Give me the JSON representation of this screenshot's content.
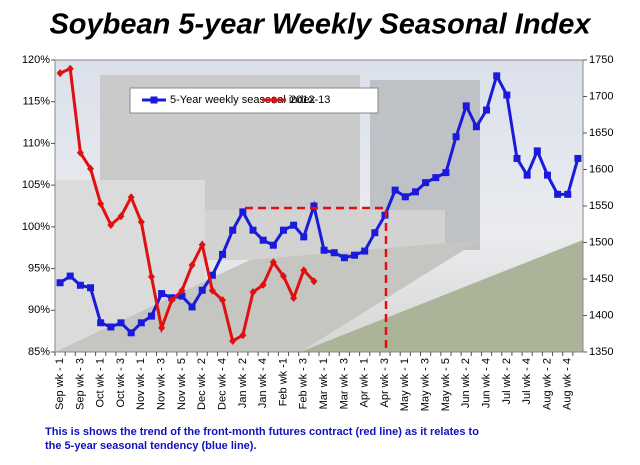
{
  "chart_data": {
    "type": "line",
    "title": "Soybean 5-year Weekly Seasonal Index",
    "footnote": "This is shows the trend of the front-month futures contract (red line) as it relates to the 5-year seasonal tendency (blue line).",
    "categories": [
      "Sep wk - 1",
      null,
      "Sep wk - 3",
      null,
      "Oct wk - 1",
      null,
      "Oct wk - 3",
      null,
      "Nov wk - 1",
      null,
      "Nov wk - 3",
      null,
      "Nov wk - 5",
      null,
      "Dec wk - 2",
      null,
      "Dec wk - 4",
      null,
      "Jan wk - 2",
      null,
      "Jan wk - 4",
      null,
      "Feb wk -1",
      null,
      "Feb wk - 3",
      null,
      "Mar wk - 1",
      null,
      "Mar wk - 3",
      null,
      "Apr wk - 1",
      null,
      "Apr wk - 3",
      null,
      "May wk - 1",
      null,
      "May wk - 3",
      null,
      "May wk - 5",
      null,
      "Jun wk - 2",
      null,
      "Jun wk - 4",
      null,
      "Jul wk - 2",
      null,
      "Jul wk - 4",
      null,
      "Aug wk - 2",
      null,
      "Aug wk - 4",
      null
    ],
    "series": [
      {
        "name": "5-Year weekly seasonal index",
        "color": "#1a1adc",
        "marker": "square",
        "axis": "y",
        "values": [
          93.3,
          94.1,
          93.0,
          92.7,
          88.5,
          88.0,
          88.5,
          87.3,
          88.5,
          89.3,
          92.0,
          91.5,
          91.7,
          90.4,
          92.4,
          94.2,
          96.7,
          99.6,
          101.8,
          99.6,
          98.4,
          97.8,
          99.6,
          100.2,
          98.8,
          102.5,
          97.2,
          96.9,
          96.3,
          96.6,
          97.1,
          99.3,
          101.4,
          104.4,
          103.6,
          104.2,
          105.3,
          105.9,
          106.5,
          110.8,
          114.5,
          112.0,
          114.0,
          118.1,
          115.8,
          108.2,
          106.2,
          109.1,
          106.2,
          103.9,
          103.9,
          108.2
        ]
      },
      {
        "name": "2012-13",
        "color": "#e01010",
        "marker": "diamond",
        "axis": "y2",
        "values": [
          1732,
          1738,
          1623,
          1601,
          1553,
          1524,
          1536,
          1562,
          1528,
          1453,
          1383,
          1421,
          1434,
          1469,
          1497,
          1434,
          1421,
          1365,
          1373,
          1432,
          1442,
          1473,
          1454,
          1424,
          1462,
          1447,
          null,
          null,
          null,
          null,
          null,
          null,
          null,
          null,
          null,
          null,
          null,
          null,
          null,
          null,
          null,
          null,
          null,
          null,
          null,
          null,
          null,
          null,
          null,
          null,
          null,
          null
        ]
      }
    ],
    "ylim": [
      85,
      120
    ],
    "yticks": [
      {
        "value": 85,
        "label": "85%"
      },
      {
        "value": 90,
        "label": "90%"
      },
      {
        "value": 95,
        "label": "95%"
      },
      {
        "value": 100,
        "label": "100%"
      },
      {
        "value": 105,
        "label": "105%"
      },
      {
        "value": 110,
        "label": "110%"
      },
      {
        "value": 115,
        "label": "115%"
      },
      {
        "value": 120,
        "label": "120%"
      }
    ],
    "y2lim": [
      1350,
      1750
    ],
    "y2ticks": [
      1350,
      1400,
      1450,
      1500,
      1550,
      1600,
      1650,
      1700,
      1750
    ],
    "legend": "top-left"
  }
}
